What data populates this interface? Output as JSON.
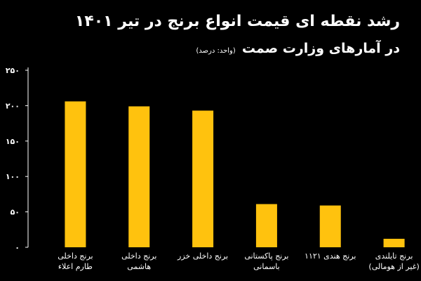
{
  "header": {
    "title_line1": "رشد نقطه ای قیمت انواع برنج در تیر ۱۴۰۱",
    "title_line2": "در آمارهای وزارت صمت",
    "unit": "(واحد: درصد)"
  },
  "colors": {
    "bar": "#FFC20E",
    "background": "#000000",
    "axis": "#ffffff"
  },
  "chart_data": {
    "type": "bar",
    "title": "رشد نقطه ای قیمت انواع برنج در تیر ۱۴۰۱ در آمارهای وزارت صمت",
    "ylabel": "(واحد: درصد)",
    "ylim": [
      0,
      250
    ],
    "yticks": [
      "۰",
      "۵۰",
      "۱۰۰",
      "۱۵۰",
      "۲۰۰",
      "۲۵۰"
    ],
    "ytick_values": [
      0,
      50,
      100,
      150,
      200,
      250
    ],
    "categories": [
      [
        "برنج داخلی",
        "طارم اعلاء"
      ],
      [
        "برنج داخلی",
        "هاشمی"
      ],
      [
        "برنج داخلی خزر"
      ],
      [
        "برنج پاکستانی",
        "باسمانی"
      ],
      [
        "برنج هندی ۱۱۲۱"
      ],
      [
        "برنج تایلندی",
        "(غیر از هومالی)"
      ]
    ],
    "values": [
      206,
      199,
      193,
      61,
      59,
      12
    ]
  }
}
